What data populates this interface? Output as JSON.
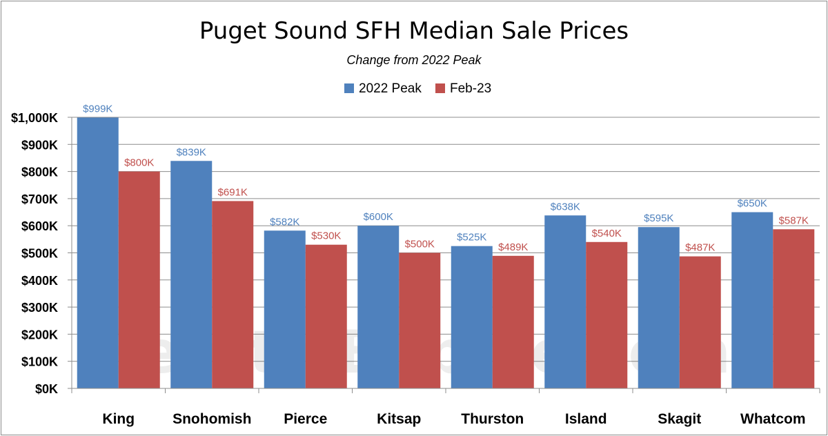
{
  "chart_data": {
    "type": "bar",
    "title": "Puget Sound SFH Median Sale Prices",
    "subtitle": "Change from 2022 Peak",
    "categories": [
      "King",
      "Snohomish",
      "Pierce",
      "Kitsap",
      "Thurston",
      "Island",
      "Skagit",
      "Whatcom"
    ],
    "series": [
      {
        "name": "2022 Peak",
        "color": "#4f81bd",
        "values": [
          999,
          839,
          582,
          600,
          525,
          638,
          595,
          650
        ],
        "labels": [
          "$999K",
          "$839K",
          "$582K",
          "$600K",
          "$525K",
          "$638K",
          "$595K",
          "$650K"
        ]
      },
      {
        "name": "Feb-23",
        "color": "#c0504d",
        "values": [
          800,
          691,
          530,
          500,
          489,
          540,
          487,
          587
        ],
        "labels": [
          "$800K",
          "$691K",
          "$530K",
          "$500K",
          "$489K",
          "$540K",
          "$487K",
          "$587K"
        ]
      }
    ],
    "ylim": [
      0,
      1000
    ],
    "yticks": [
      0,
      100,
      200,
      300,
      400,
      500,
      600,
      700,
      800,
      900,
      1000
    ],
    "ytick_labels": [
      "$0K",
      "$100K",
      "$200K",
      "$300K",
      "$400K",
      "$500K",
      "$600K",
      "$700K",
      "$800K",
      "$900K",
      "$1,000K"
    ],
    "grid": true,
    "legend_position": "top-center",
    "watermark": "SeattleBubble.com"
  }
}
